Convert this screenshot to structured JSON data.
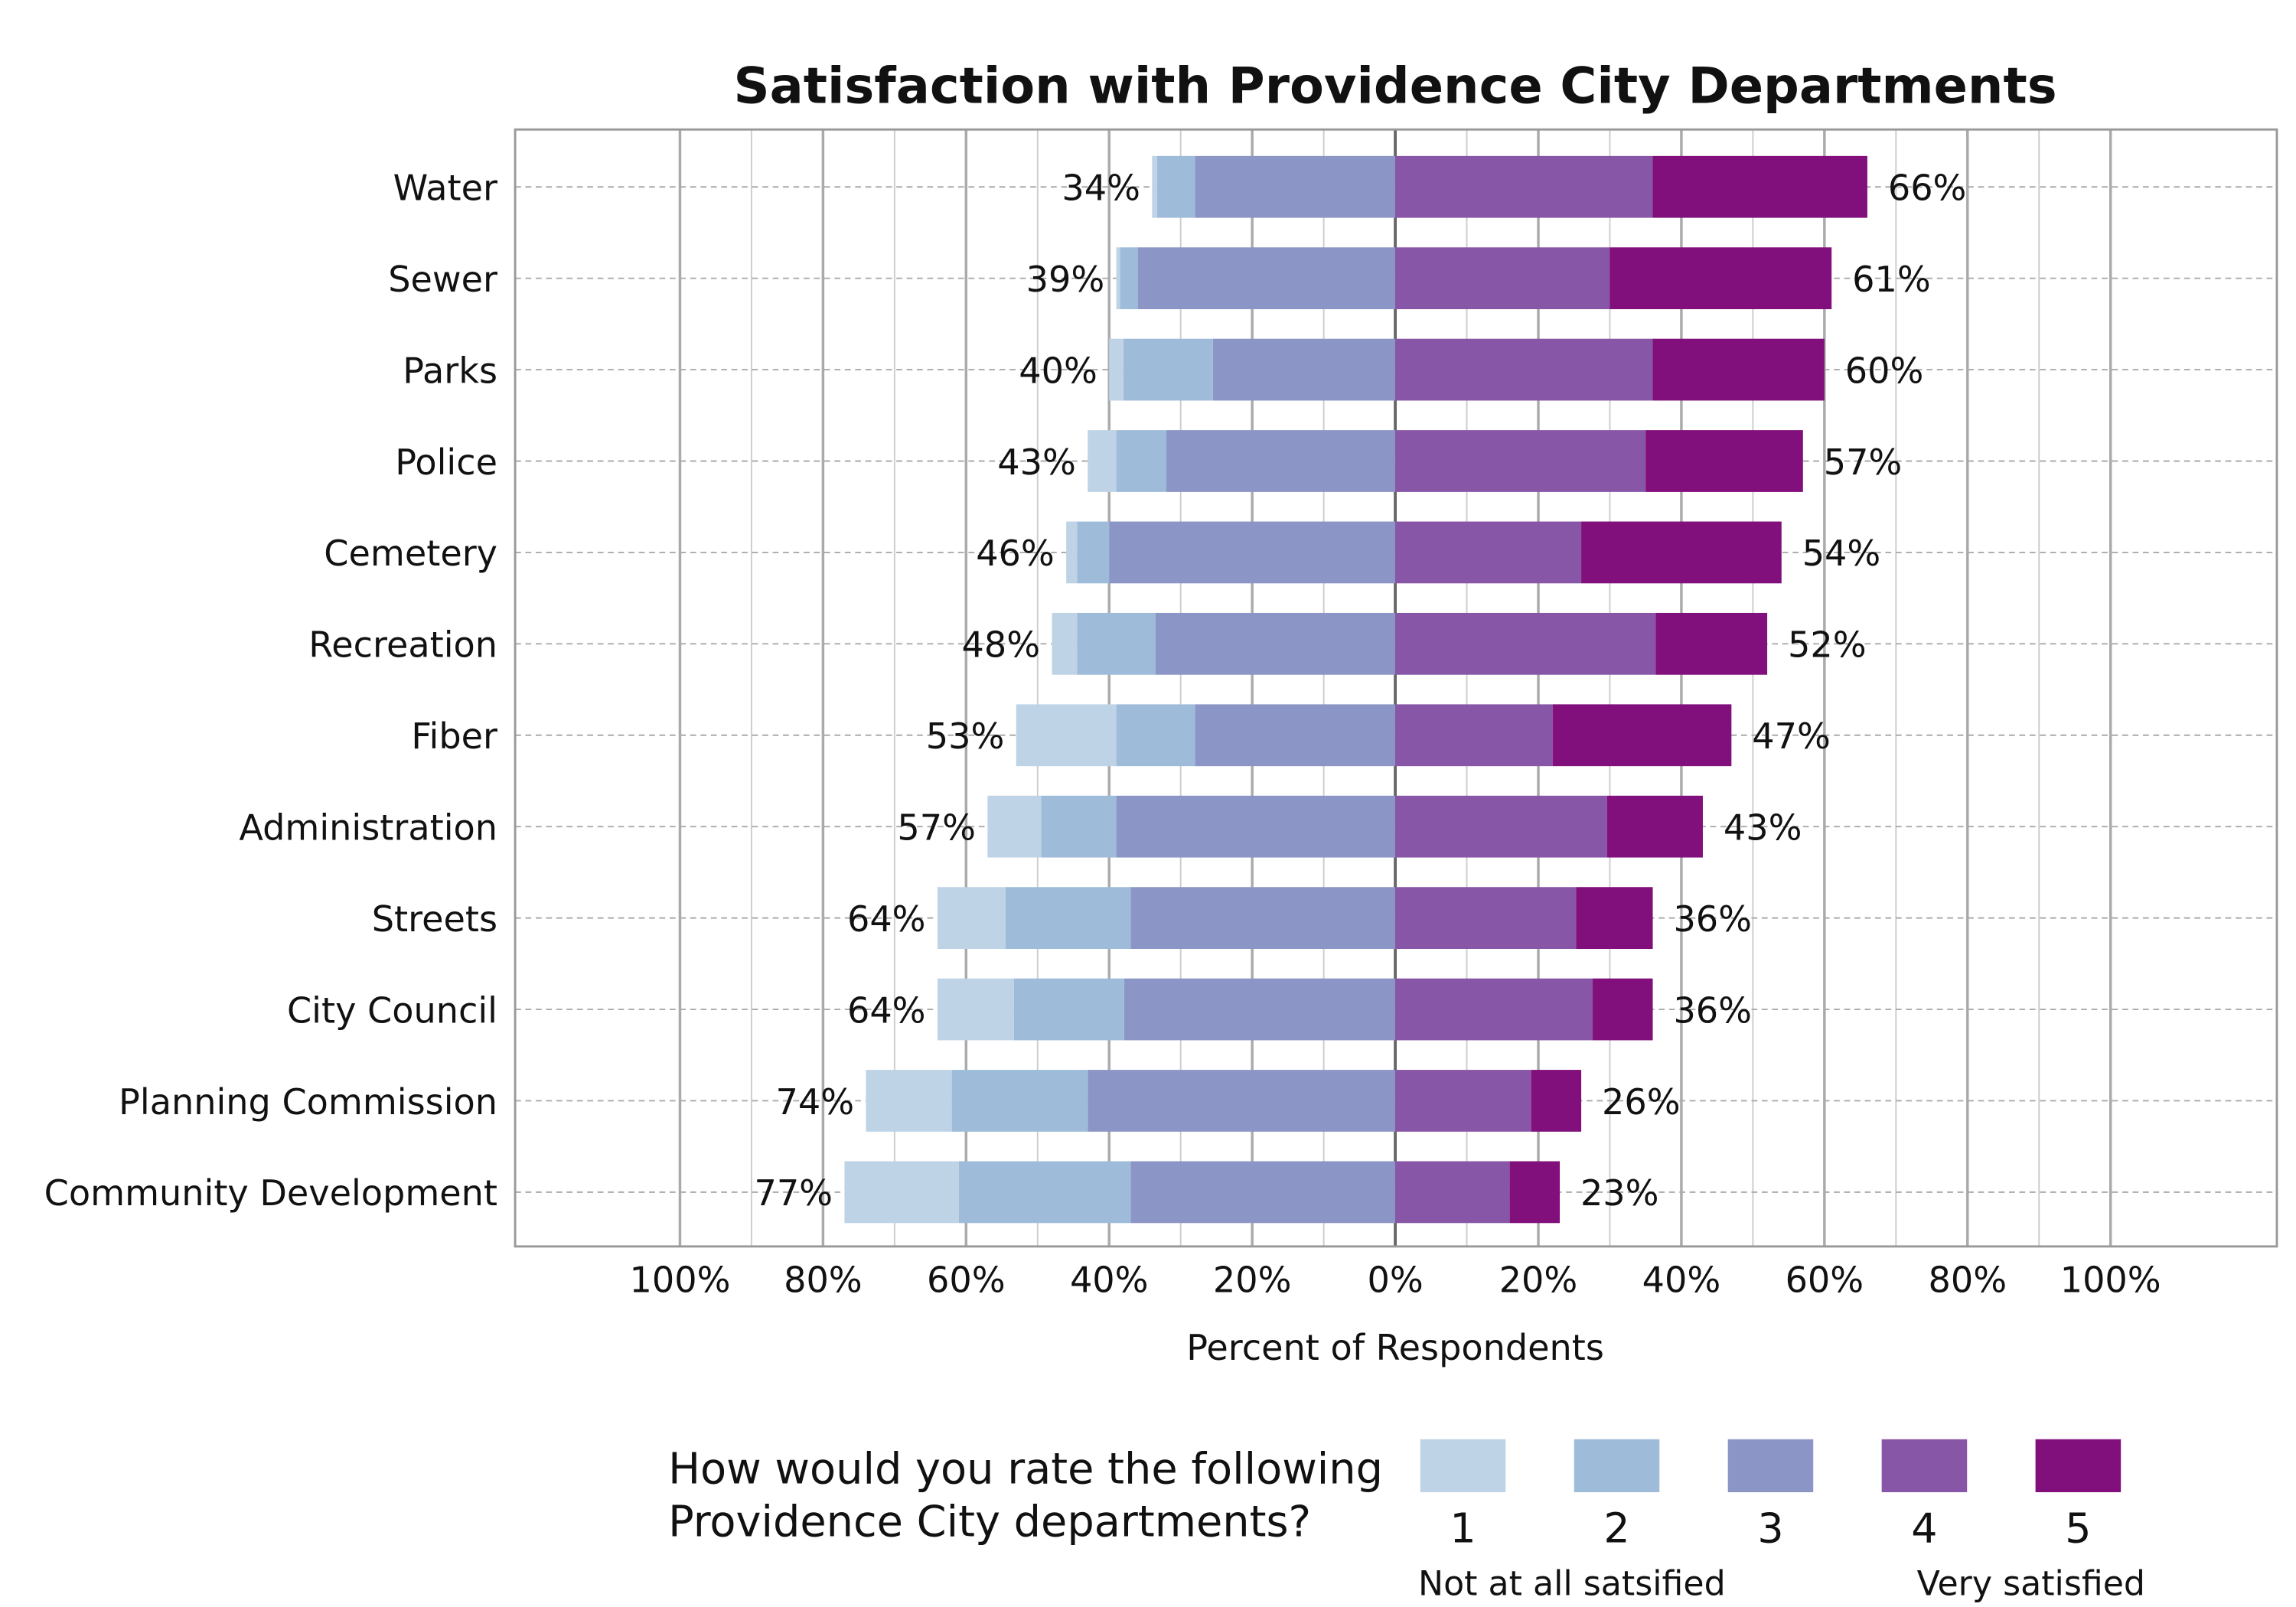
{
  "chart_data": {
    "type": "bar",
    "orientation": "horizontal-diverging-stacked",
    "title": "Satisfaction with Providence City Departments",
    "xlabel": "Percent of Respondents",
    "xlim": [
      -123,
      123
    ],
    "x_ticks": [
      "100%",
      "80%",
      "60%",
      "40%",
      "20%",
      "0%",
      "20%",
      "40%",
      "60%",
      "80%",
      "100%"
    ],
    "grid": true,
    "legend_placement": "bottom",
    "legend_title": "How would you rate the following Providence City departments?",
    "legend_title_lines": [
      "How would you rate the following",
      "Providence City departments?"
    ],
    "legend_low": "Not at all satsified",
    "legend_high": "Very satisfied",
    "categories": [
      "Water",
      "Sewer",
      "Parks",
      "Police",
      "Cemetery",
      "Recreation",
      "Fiber",
      "Administration",
      "Streets",
      "City Council",
      "Planning Commission",
      "Community Development"
    ],
    "series": [
      {
        "name": "1",
        "color": "#bfd3e6",
        "side": "negative",
        "values": [
          0.7,
          0.5,
          2,
          4,
          1.5,
          3.5,
          14,
          7.5,
          9.5,
          10.7,
          12,
          16
        ]
      },
      {
        "name": "2",
        "color": "#9ebcda",
        "side": "negative",
        "values": [
          5.3,
          2.5,
          12.5,
          7,
          4.5,
          11,
          11,
          10.5,
          17.5,
          15.4,
          19,
          24
        ]
      },
      {
        "name": "3",
        "color": "#8c96c6",
        "side": "negative",
        "values": [
          28,
          36,
          25.5,
          32,
          40,
          33.5,
          28,
          39,
          37,
          37.9,
          43,
          37
        ]
      },
      {
        "name": "4",
        "color": "#8856a7",
        "side": "positive",
        "values": [
          36,
          30,
          36,
          35,
          26,
          36.4,
          22,
          29.6,
          25.3,
          27.6,
          19,
          16
        ]
      },
      {
        "name": "5",
        "color": "#810f7c",
        "side": "positive",
        "values": [
          30,
          31,
          24,
          22,
          28,
          15.6,
          25,
          13.4,
          10.7,
          8.4,
          7,
          7
        ]
      }
    ],
    "neg_labels": [
      "34%",
      "39%",
      "40%",
      "43%",
      "46%",
      "48%",
      "53%",
      "57%",
      "64%",
      "64%",
      "74%",
      "77%"
    ],
    "pos_labels": [
      "66%",
      "61%",
      "60%",
      "57%",
      "54%",
      "52%",
      "47%",
      "43%",
      "36%",
      "36%",
      "26%",
      "23%"
    ]
  }
}
